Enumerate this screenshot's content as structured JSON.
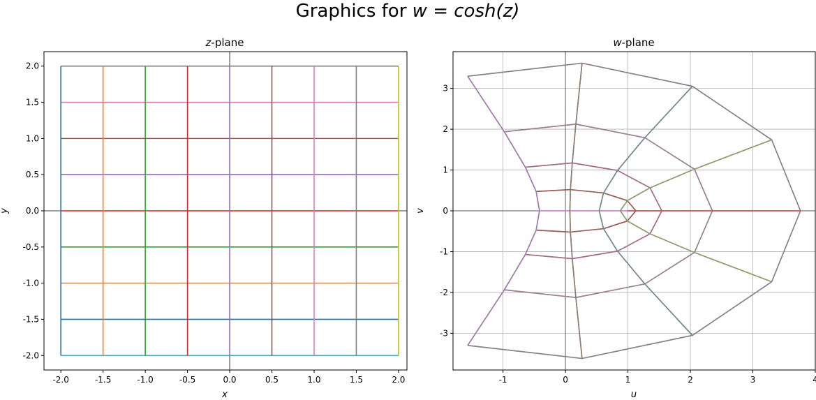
{
  "figure": {
    "suptitle_prefix": "Graphics for ",
    "suptitle_math": "w = cosh(z)"
  },
  "colors": [
    "#1f77b4",
    "#ff7f0e",
    "#2ca02c",
    "#d62728",
    "#9467bd",
    "#8c564b",
    "#e377c2",
    "#7f7f7f",
    "#bcbd22",
    "#17becf"
  ],
  "chart_data": [
    {
      "type": "line",
      "title_var": "z",
      "title_suffix": "-plane",
      "xlabel": "x",
      "ylabel": "y",
      "xlim": [
        -2.2,
        2.1
      ],
      "ylim": [
        -2.2,
        2.2
      ],
      "xticks": [
        "-2.0",
        "-1.5",
        "-1.0",
        "-0.5",
        "0.0",
        "0.5",
        "1.0",
        "1.5",
        "2.0"
      ],
      "yticks": [
        "-2.0",
        "-1.5",
        "-1.0",
        "-0.5",
        "0.0",
        "0.5",
        "1.0",
        "1.5",
        "2.0"
      ],
      "xtick_values": [
        -2.0,
        -1.5,
        -1.0,
        -0.5,
        0.0,
        0.5,
        1.0,
        1.5,
        2.0
      ],
      "ytick_values": [
        -2.0,
        -1.5,
        -1.0,
        -0.5,
        0.0,
        0.5,
        1.0,
        1.5,
        2.0
      ],
      "grid": false,
      "zero_axes": true,
      "vertical_lines": {
        "x": [
          -2.0,
          -1.5,
          -1.0,
          -0.5,
          0.0,
          0.5,
          1.0,
          1.5,
          2.0
        ],
        "y_range": [
          -2.0,
          2.0
        ],
        "colors": [
          "#1f77b4",
          "#ff7f0e",
          "#2ca02c",
          "#d62728",
          "#9467bd",
          "#8c564b",
          "#e377c2",
          "#7f7f7f",
          "#bcbd22"
        ]
      },
      "horizontal_lines": {
        "y": [
          -2.0,
          -1.5,
          -1.0,
          -0.5,
          0.0,
          0.5,
          1.0,
          1.5,
          2.0
        ],
        "x_range": [
          -2.0,
          2.0
        ],
        "colors": [
          "#17becf",
          "#1f77b4",
          "#ff7f0e",
          "#2ca02c",
          "#d62728",
          "#9467bd",
          "#8c564b",
          "#e377c2",
          "#7f7f7f"
        ]
      }
    },
    {
      "type": "line",
      "title_var": "w",
      "title_suffix": "-plane",
      "xlabel": "u",
      "ylabel": "v",
      "xlim": [
        -1.8,
        4.0
      ],
      "ylim": [
        -3.9,
        3.9
      ],
      "xticks": [
        "-1",
        "0",
        "1",
        "2",
        "3",
        "4"
      ],
      "yticks": [
        "-3",
        "-2",
        "-1",
        "0",
        "1",
        "2",
        "3"
      ],
      "xtick_values": [
        -1,
        0,
        1,
        2,
        3,
        4
      ],
      "ytick_values": [
        -3,
        -2,
        -1,
        0,
        1,
        2,
        3
      ],
      "grid": true,
      "zero_axes": true,
      "mapping": "w = cosh(x + i y)",
      "x_values": [
        -2.0,
        -1.5,
        -1.0,
        -0.5,
        0.0,
        0.5,
        1.0,
        1.5,
        2.0
      ],
      "y_values": [
        -2.0,
        -1.5,
        -1.0,
        -0.5,
        0.0,
        0.5,
        1.0,
        1.5,
        2.0
      ],
      "series_colors": [
        "#8f9e66",
        "#6c8d8d",
        "#8c7f74",
        "#9f7ca6",
        "#c376c3",
        "#9a5a4f",
        "#a86a8c",
        "#9f8095",
        "#8b7d96"
      ]
    }
  ]
}
